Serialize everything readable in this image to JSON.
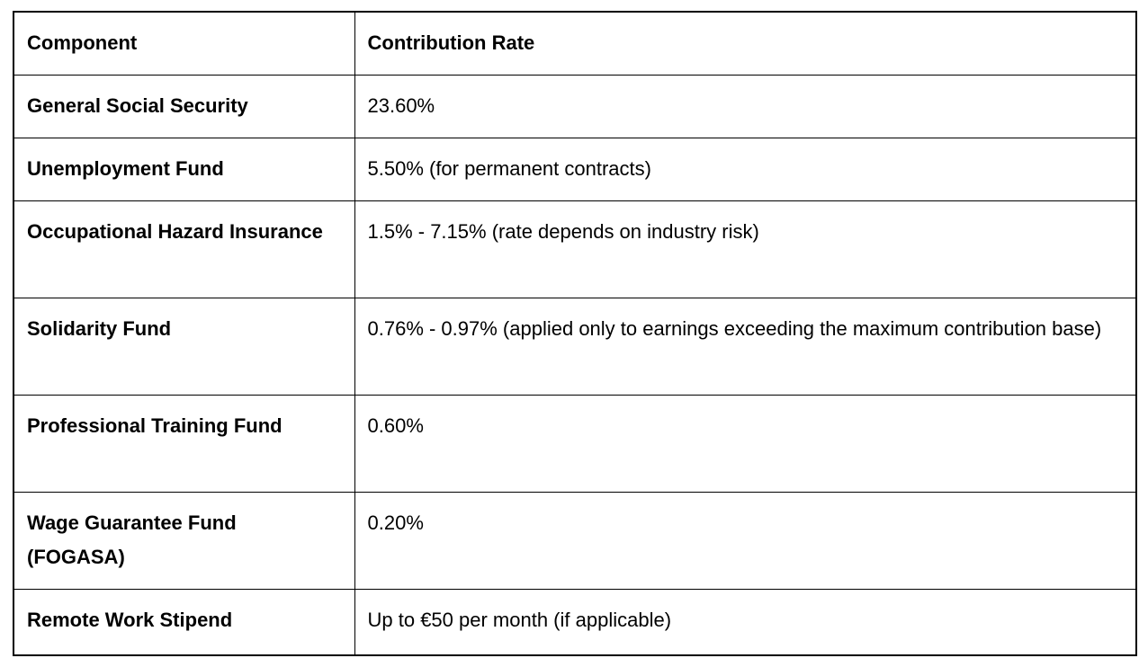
{
  "table": {
    "headers": {
      "component": "Component",
      "rate": "Contribution Rate"
    },
    "rows": [
      {
        "component": "General Social Security",
        "rate": "23.60%"
      },
      {
        "component": "Unemployment Fund",
        "rate": "5.50% (for permanent contracts)"
      },
      {
        "component": "Occupational Hazard Insurance",
        "rate": "1.5% - 7.15% (rate depends on industry risk)"
      },
      {
        "component": "Solidarity Fund",
        "rate": "0.76% - 0.97% (applied only to earnings exceeding the maximum contribution base)"
      },
      {
        "component": "Professional Training Fund",
        "rate": "0.60%"
      },
      {
        "component": "Wage Guarantee Fund (FOGASA)",
        "rate": "0.20%"
      },
      {
        "component": "Remote Work Stipend",
        "rate": "Up to €50 per month (if applicable)"
      }
    ],
    "border_color": "#000000",
    "text_color": "#000000",
    "background_color": "#ffffff"
  }
}
